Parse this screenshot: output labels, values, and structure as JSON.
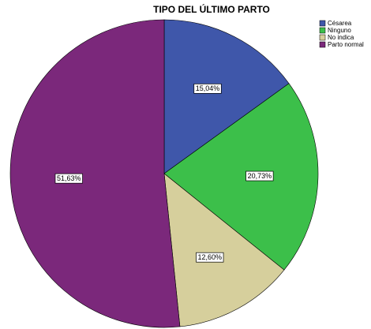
{
  "chart_data": {
    "type": "pie",
    "title": "TIPO DEL ÚLTIMO PARTO",
    "categories": [
      "Césarea",
      "Ninguno",
      "No indica",
      "Parto normal"
    ],
    "values": [
      15.04,
      20.73,
      12.6,
      51.63
    ],
    "value_labels": [
      "15,04%",
      "20,73%",
      "12,60%",
      "51,63%"
    ],
    "colors": [
      "#3f57aa",
      "#3cbf4a",
      "#d6cf9c",
      "#7b287b"
    ],
    "legend": "upper right"
  }
}
